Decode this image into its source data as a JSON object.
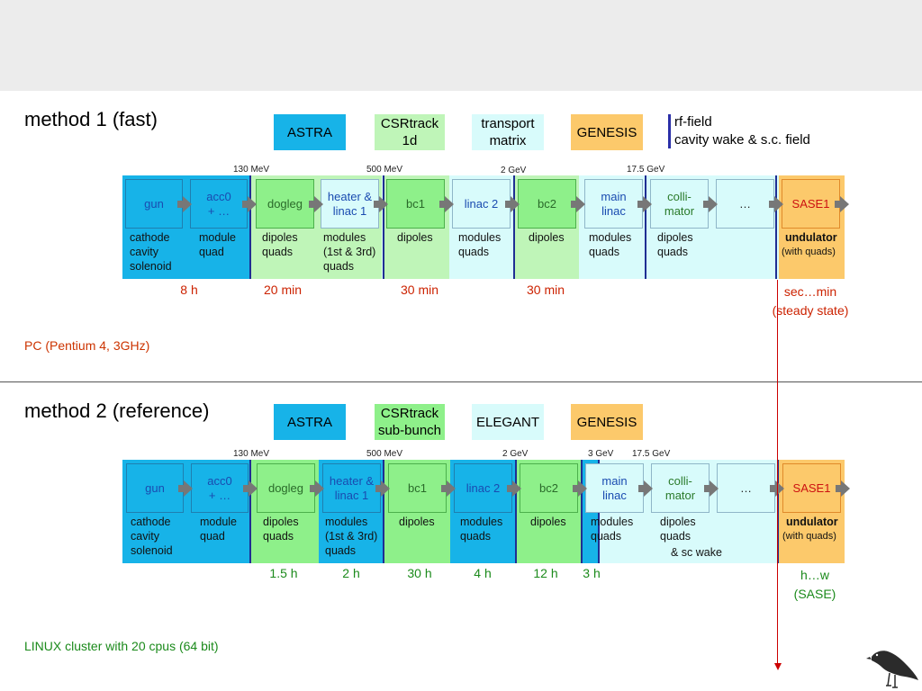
{
  "method1": {
    "title": "method 1 (fast)",
    "codes": [
      {
        "label": "ASTRA",
        "bg": "#17b3e8"
      },
      {
        "label": "CSRtrack\n1d",
        "bg": "#bff5b8"
      },
      {
        "label": "transport\nmatrix",
        "bg": "#d8fbfb"
      },
      {
        "label": "GENESIS",
        "bg": "#fcc96b"
      }
    ],
    "legend_note": [
      "rf-field",
      "cavity wake & s.c. field"
    ],
    "energies": [
      "130 MeV",
      "500 MeV",
      "2 GeV",
      "17.5 GeV"
    ],
    "elements": [
      "gun",
      "acc0\n+ …",
      "dogleg",
      "heater &\nlinac 1",
      "bc1",
      "linac 2",
      "bc2",
      "main\nlinac",
      "colli-\nmator",
      "…",
      "SASE1"
    ],
    "labels": [
      "cathode\ncavity\nsolenoid",
      "module\nquad",
      "dipoles\nquads",
      "modules\n(1st & 3rd)\nquads",
      "dipoles",
      "modules\nquads",
      "dipoles",
      "modules\nquads",
      "dipoles\nquads",
      "undulator",
      "(with quads)"
    ],
    "times": [
      "8 h",
      "20 min",
      "30 min",
      "30 min",
      "sec…min\n(steady state)"
    ],
    "footer": "PC (Pentium 4, 3GHz)"
  },
  "method2": {
    "title": "method 2 (reference)",
    "codes": [
      {
        "label": "ASTRA",
        "bg": "#17b3e8"
      },
      {
        "label": "CSRtrack\nsub-bunch",
        "bg": "#8ef08a"
      },
      {
        "label": "ELEGANT",
        "bg": "#d8fbfb"
      },
      {
        "label": "GENESIS",
        "bg": "#fcc96b"
      }
    ],
    "energies": [
      "130 MeV",
      "500 MeV",
      "2 GeV",
      "3 GeV",
      "17.5 GeV"
    ],
    "elements": [
      "gun",
      "acc0\n+ …",
      "dogleg",
      "heater &\nlinac 1",
      "bc1",
      "linac 2",
      "bc2",
      "main\nlinac",
      "colli-\nmator",
      "…",
      "SASE1"
    ],
    "labels": [
      "cathode\ncavity\nsolenoid",
      "module\nquad",
      "dipoles\nquads",
      "modules\n(1st & 3rd)\nquads",
      "dipoles",
      "modules\nquads",
      "dipoles",
      "modules\nquads",
      "dipoles\nquads",
      "& sc wake",
      "undulator",
      "(with quads)"
    ],
    "times": [
      "1.5 h",
      "2 h",
      "30 h",
      "4 h",
      "12 h",
      "3 h",
      "h…w\n(SASE)"
    ],
    "footer": "LINUX cluster with 20 cpus (64 bit)"
  },
  "colors": {
    "astra": "#17b3e8",
    "csrtrack_1d": "#bff5b8",
    "csrtrack_sub": "#8ef08a",
    "transport": "#d8fbfb",
    "genesis": "#fcc96b",
    "time_red": "#cc2200",
    "time_green": "#1b8a1b",
    "footer_red": "#cc3300",
    "footer_green": "#1b8a1b",
    "separator": "#1f2e93"
  }
}
